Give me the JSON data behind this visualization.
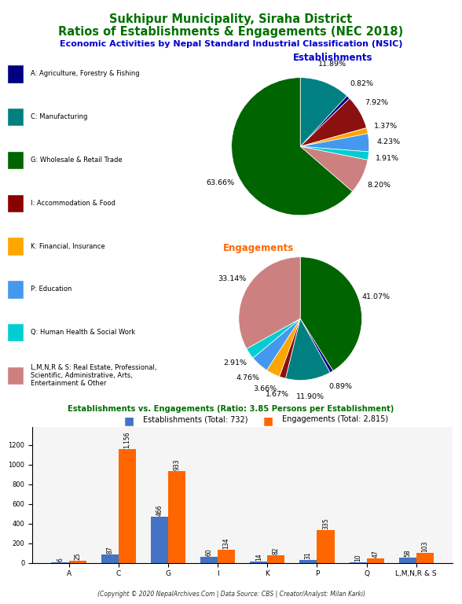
{
  "title_line1": "Sukhipur Municipality, Siraha District",
  "title_line2": "Ratios of Establishments & Engagements (NEC 2018)",
  "subtitle": "Economic Activities by Nepal Standard Industrial Classification (NSIC)",
  "title_color": "#007000",
  "subtitle_color": "#0000cc",
  "establishments_label": "Establishments",
  "engagements_label": "Engagements",
  "label_color": "#0000cc",
  "engagements_color": "#ff6600",
  "pie_colors_ordered": [
    "#008080",
    "#000080",
    "#006400",
    "#8B0000",
    "#FFA500",
    "#4499EE",
    "#00CED1",
    "#CD8080"
  ],
  "categories_legend": [
    "A: Agriculture, Forestry & Fishing",
    "C: Manufacturing",
    "G: Wholesale & Retail Trade",
    "I: Accommodation & Food",
    "K: Financial, Insurance",
    "P: Education",
    "Q: Human Health & Social Work",
    "L,M,N,R & S: Real Estate, Professional,\nScientific, Administrative, Arts,\nEntertainment & Other"
  ],
  "legend_colors": [
    "#000080",
    "#008080",
    "#006400",
    "#8B0000",
    "#FFA500",
    "#4499EE",
    "#00CED1",
    "#CD8080"
  ],
  "est_pct_ordered": [
    11.89,
    0.82,
    63.66,
    7.92,
    1.37,
    4.23,
    1.91,
    8.2
  ],
  "eng_pct_ordered": [
    11.9,
    0.89,
    41.07,
    1.67,
    3.66,
    4.76,
    2.91,
    33.14
  ],
  "est_slice_order": [
    1,
    0,
    7,
    5,
    6,
    3,
    4,
    2
  ],
  "eng_slice_order": [
    2,
    0,
    7,
    5,
    6,
    3,
    4,
    1
  ],
  "bar_categories": [
    "A",
    "C",
    "G",
    "I",
    "K",
    "P",
    "Q",
    "L,M,N,R & S"
  ],
  "est_values": [
    6,
    87,
    466,
    60,
    14,
    31,
    10,
    58
  ],
  "eng_values": [
    25,
    1156,
    933,
    134,
    82,
    335,
    47,
    103
  ],
  "bar_title": "Establishments vs. Engagements (Ratio: 3.85 Persons per Establishment)",
  "bar_title_color": "#007000",
  "legend_est": "Establishments (Total: 732)",
  "legend_eng": "Engagements (Total: 2,815)",
  "est_bar_color": "#4472C4",
  "eng_bar_color": "#FF6600",
  "footer": "(Copyright © 2020 NepalArchives.Com | Data Source: CBS | Creator/Analyst: Milan Karki)",
  "background_color": "#ffffff"
}
